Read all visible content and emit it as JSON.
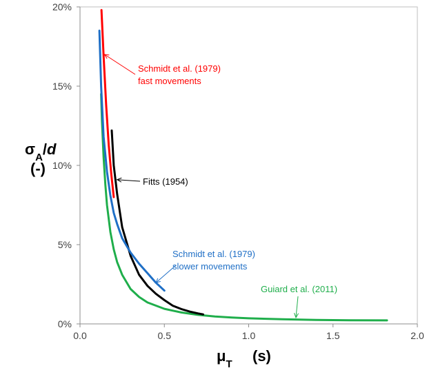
{
  "chart_data": {
    "type": "line",
    "ylabel": {
      "main": "σ",
      "sub": "A",
      "rest": "/",
      "var": "d",
      "unit": "(-)"
    },
    "xlabel": {
      "main": "μ",
      "sub": "T",
      "unit": "(s)"
    },
    "xlim": [
      0,
      2.0
    ],
    "ylim": [
      0,
      0.2
    ],
    "x_ticks": [
      "0.0",
      "0.5",
      "1.0",
      "1.5",
      "2.0"
    ],
    "y_ticks": [
      "0%",
      "5%",
      "10%",
      "15%",
      "20%"
    ],
    "grid": false,
    "series": [
      {
        "name": "Schmidt et al. (1979) fast movements",
        "color": "#ff0000",
        "x": [
          0.127,
          0.14,
          0.155,
          0.17,
          0.185,
          0.2
        ],
        "y": [
          0.198,
          0.169,
          0.138,
          0.113,
          0.095,
          0.08
        ]
      },
      {
        "name": "Fitts (1954)",
        "color": "#000000",
        "x": [
          0.188,
          0.2,
          0.22,
          0.25,
          0.3,
          0.35,
          0.4,
          0.45,
          0.5,
          0.55,
          0.6,
          0.65,
          0.7,
          0.73
        ],
        "y": [
          0.122,
          0.1,
          0.082,
          0.061,
          0.043,
          0.031,
          0.024,
          0.019,
          0.015,
          0.0115,
          0.0094,
          0.0078,
          0.0066,
          0.006
        ]
      },
      {
        "name": "Schmidt et al. (1979) slower movements",
        "color": "#1f6fc6",
        "x": [
          0.115,
          0.125,
          0.14,
          0.16,
          0.18,
          0.2,
          0.22,
          0.25,
          0.3,
          0.35,
          0.4,
          0.45,
          0.5
        ],
        "y": [
          0.185,
          0.15,
          0.118,
          0.096,
          0.081,
          0.07,
          0.063,
          0.054,
          0.045,
          0.038,
          0.032,
          0.026,
          0.021
        ]
      },
      {
        "name": "Guiard et al. (2011)",
        "color": "#1fae4b",
        "x": [
          0.125,
          0.13,
          0.14,
          0.15,
          0.16,
          0.18,
          0.2,
          0.22,
          0.25,
          0.3,
          0.35,
          0.4,
          0.5,
          0.6,
          0.7,
          0.8,
          0.9,
          1.0,
          1.2,
          1.4,
          1.6,
          1.82
        ],
        "y": [
          0.145,
          0.128,
          0.105,
          0.088,
          0.075,
          0.058,
          0.047,
          0.039,
          0.031,
          0.022,
          0.017,
          0.0135,
          0.0095,
          0.0072,
          0.0057,
          0.0047,
          0.004,
          0.0035,
          0.0029,
          0.0025,
          0.0023,
          0.0022
        ]
      }
    ],
    "annotations": [
      {
        "id": "schmidt-fast",
        "lines": [
          "Schmidt et al. (1979)",
          "fast movements"
        ],
        "color": "#ff0000",
        "arrow_to": [
          0.145,
          0.17
        ]
      },
      {
        "id": "fitts",
        "lines": [
          "Fitts (1954)"
        ],
        "color": "#000000",
        "arrow_to": [
          0.22,
          0.091
        ]
      },
      {
        "id": "schmidt-slow",
        "lines": [
          "Schmidt et al. (1979)",
          "slower movements"
        ],
        "color": "#1f6fc6",
        "arrow_to": [
          0.45,
          0.026
        ]
      },
      {
        "id": "guiard",
        "lines": [
          "Guiard et al. (2011)"
        ],
        "color": "#1fae4b",
        "arrow_to": [
          1.28,
          0.004
        ]
      }
    ]
  }
}
